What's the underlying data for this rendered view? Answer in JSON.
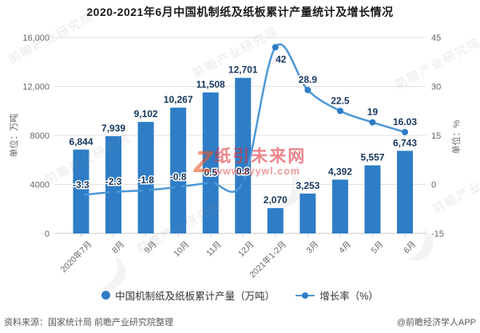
{
  "title": "2020-2021年6月中国机制纸及纸板累计产量统计及增长情况",
  "chart_data": {
    "type": "bar+line",
    "categories": [
      "2020年7月",
      "8月",
      "9月",
      "10月",
      "11月",
      "12月",
      "2021年1-2月",
      "3月",
      "4月",
      "5月",
      "6月"
    ],
    "series": [
      {
        "name": "中国机制纸及纸板累计产量（万吨）",
        "type": "bar",
        "yaxis": "left",
        "values": [
          6844,
          7939,
          9102,
          10267,
          11508,
          12701,
          2070,
          3253,
          4392,
          5557,
          6743
        ],
        "labels": [
          "6,844",
          "7,939",
          "9,102",
          "10,267",
          "11,508",
          "12,701",
          "2,070",
          "3,253",
          "4,392",
          "5,557",
          "6,743"
        ]
      },
      {
        "name": "增长率（%）",
        "type": "line",
        "yaxis": "right",
        "values": [
          -3.3,
          -2.3,
          -1.8,
          -0.8,
          0.5,
          0.8,
          42,
          28.9,
          22.5,
          19,
          16.03
        ],
        "labels": [
          "-3.3",
          "-2.3",
          "-1.8",
          "-0.8",
          "0.5",
          "0.8",
          "42",
          "28.9",
          "22.5",
          "19",
          "16.03"
        ]
      }
    ],
    "left_axis": {
      "unit": "单位：万吨",
      "range": [
        0,
        16000
      ],
      "ticks": [
        0,
        4000,
        8000,
        12000,
        16000
      ],
      "tick_labels": [
        "0",
        "4000",
        "8000",
        "12,000",
        "16,000"
      ]
    },
    "right_axis": {
      "unit": "单位：%",
      "range": [
        -15,
        45
      ],
      "ticks": [
        -15,
        0,
        15,
        30,
        45
      ],
      "tick_labels": [
        "-15",
        "0",
        "15",
        "30",
        "45"
      ]
    },
    "grid": true,
    "legend_position": "bottom",
    "legend": [
      {
        "label": "中国机制纸及纸板累计产量（万吨）",
        "marker": "circle"
      },
      {
        "label": "增长率（%）",
        "marker": "line-dot"
      }
    ],
    "colors": {
      "bar": "#2e7dc6",
      "line": "#4e97d6",
      "marker": "#2e7dc6",
      "value_label": "#16365c",
      "axis_text": "#666666",
      "grid_line": "#e0e0e0",
      "axis_line": "#c9c9c9"
    }
  },
  "watermarks": {
    "gray_text": "前瞻产业研究院",
    "red": {
      "logo": "Z",
      "line1": "纸引未来网",
      "line2": "www.zyywl.com"
    }
  },
  "footer": {
    "source": "资料来源：国家统计局 前瞻产业研究院整理",
    "credit": "@前瞻经济学人APP"
  }
}
